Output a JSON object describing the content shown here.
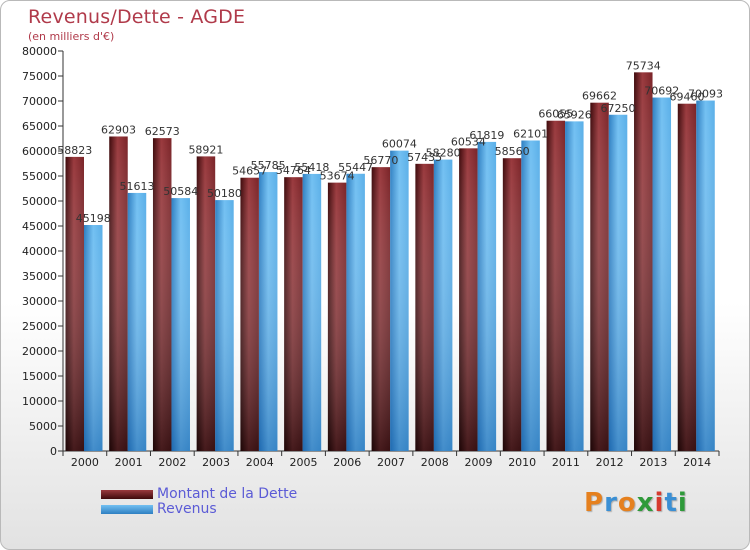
{
  "title": "Revenus/Dette - AGDE",
  "subtitle": "(en milliers d'€)",
  "colors": {
    "debt": "#7a2428",
    "debt_light": "#9a3a3e",
    "debt_dark": "#3e0a0c",
    "revenue": "#5aafe8",
    "revenue_light": "#72c0f2",
    "revenue_dark": "#2e7fc2",
    "axis": "#333333",
    "title": "#b03a4a",
    "legend_text": "#5b5bd6"
  },
  "legend": {
    "debt_label": "Montant de la Dette",
    "revenue_label": "Revenus"
  },
  "logo": {
    "letters": [
      "P",
      "r",
      "o",
      "x",
      "i",
      "t",
      "i"
    ],
    "colors": [
      "#e5801e",
      "#3a8fd4",
      "#e5801e",
      "#2f9a3a",
      "#d63b2f",
      "#3a8fd4",
      "#2f9a3a"
    ]
  },
  "chart_data": {
    "type": "bar",
    "categories": [
      "2000",
      "2001",
      "2002",
      "2003",
      "2004",
      "2005",
      "2006",
      "2007",
      "2008",
      "2009",
      "2010",
      "2011",
      "2012",
      "2013",
      "2014"
    ],
    "series": [
      {
        "name": "Montant de la Dette",
        "values": [
          58823,
          62903,
          62573,
          58921,
          54657,
          54764,
          53674,
          56770,
          57435,
          60534,
          58560,
          66055,
          69662,
          75734,
          69460
        ]
      },
      {
        "name": "Revenus",
        "values": [
          45198,
          51613,
          50584,
          50180,
          55785,
          55418,
          55447,
          60074,
          58280,
          61819,
          62101,
          65926,
          67250,
          70692,
          70093
        ]
      }
    ],
    "data_labels": [
      [
        "58823",
        "62903",
        "62573",
        "58921",
        "54657",
        "54764",
        "53674",
        "56770",
        "57435",
        "60534",
        "58560",
        "66055",
        "69662",
        "75734",
        "69460"
      ],
      [
        "45198",
        "51613",
        "50584",
        "50180",
        "55785",
        "55418",
        "55447",
        "60074",
        "58280",
        "61819",
        "62101",
        "65926",
        "67250",
        "70692",
        "70093"
      ]
    ],
    "ylim": [
      0,
      80000
    ],
    "yticks": [
      0,
      5000,
      10000,
      15000,
      20000,
      25000,
      30000,
      35000,
      40000,
      45000,
      50000,
      55000,
      60000,
      65000,
      70000,
      75000,
      80000
    ],
    "ytick_labels": [
      "0",
      "5000",
      "10000",
      "15000",
      "20000",
      "25000",
      "30000",
      "35000",
      "40000",
      "45000",
      "50000",
      "55000",
      "60000",
      "65000",
      "70000",
      "75000",
      "80000"
    ],
    "grid": false,
    "legend_position": "bottom-left"
  }
}
